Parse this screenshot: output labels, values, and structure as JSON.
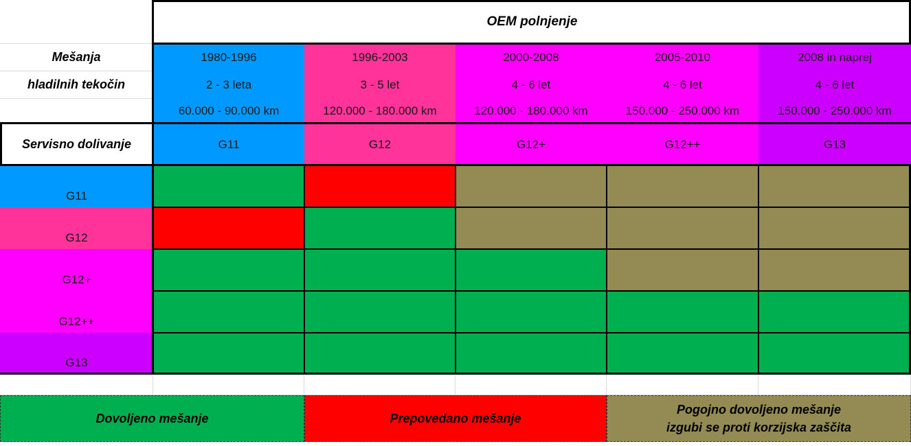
{
  "colors": {
    "g11": "#0099ff",
    "g12": "#ff3399",
    "g12plus": "#ff00ff",
    "g12plusplus": "#ff00ff",
    "g13": "#cc00ff",
    "allowed": "#00b050",
    "forbidden": "#ff0000",
    "conditional": "#948a54"
  },
  "header": {
    "oem_title": "OEM polnjenje",
    "mixing_line1": "Mešanja",
    "mixing_line2": "hladilnih tekočin",
    "service_label": "Servisno dolivanje"
  },
  "columns": [
    {
      "years": "1980-1996",
      "interval": "2 - 3 leta",
      "km": "60.000 - 90.000 km",
      "type": "G11"
    },
    {
      "years": "1996-2003",
      "interval": "3 - 5 let",
      "km": "120.000 - 180.000 km",
      "type": "G12"
    },
    {
      "years": "2000-2008",
      "interval": "4 - 6 let",
      "km": "120.000 - 180.000 km",
      "type": "G12+"
    },
    {
      "years": "2005-2010",
      "interval": "4 - 6 let",
      "km": "150.000 - 250.000 km",
      "type": "G12++"
    },
    {
      "years": "2008 in naprej",
      "interval": "4 - 6 let",
      "km": "150.000 - 250.000 km",
      "type": "G13"
    }
  ],
  "rows": [
    {
      "label": "G11",
      "cells": [
        "allowed",
        "forbidden",
        "conditional",
        "conditional",
        "conditional"
      ]
    },
    {
      "label": "G12",
      "cells": [
        "forbidden",
        "allowed",
        "conditional",
        "conditional",
        "conditional"
      ]
    },
    {
      "label": "G12+",
      "cells": [
        "allowed",
        "allowed",
        "allowed",
        "conditional",
        "conditional"
      ]
    },
    {
      "label": "G12++",
      "cells": [
        "allowed",
        "allowed",
        "allowed",
        "allowed",
        "allowed"
      ]
    },
    {
      "label": "G13",
      "cells": [
        "allowed",
        "allowed",
        "allowed",
        "allowed",
        "allowed"
      ]
    }
  ],
  "legend": {
    "allowed": "Dovoljeno mešanje",
    "forbidden": "Prepovedano mešanje",
    "conditional_line1": "Pogojno dovoljeno mešanje",
    "conditional_line2": "izgubi se proti korzijska zaščita"
  }
}
